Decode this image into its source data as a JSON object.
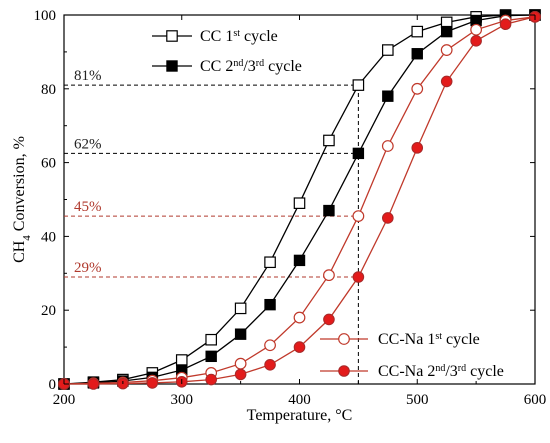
{
  "chart_data": {
    "type": "line",
    "xlabel": "Temperature, °C",
    "ylabel": {
      "pre": "CH",
      "sub": "4",
      "post": " Conversion, %"
    },
    "xlim": [
      200,
      600
    ],
    "ylim": [
      0,
      100
    ],
    "xticks": [
      200,
      300,
      400,
      500,
      600
    ],
    "yticks": [
      0,
      20,
      40,
      60,
      80,
      100
    ],
    "grid": false,
    "series": [
      {
        "id": "cc1",
        "name": {
          "pre": "CC 1",
          "sup": "st",
          "post": " cycle"
        },
        "color": "#000000",
        "marker": "square-open",
        "x": [
          200,
          225,
          250,
          275,
          300,
          325,
          350,
          375,
          400,
          425,
          450,
          475,
          500,
          525,
          550,
          575,
          600
        ],
        "y": [
          0,
          0.5,
          1.2,
          3,
          6.5,
          12,
          20.5,
          33,
          49,
          66,
          81,
          90.5,
          95.5,
          98,
          99.5,
          100,
          100
        ]
      },
      {
        "id": "cc23",
        "name": {
          "pre": "CC 2",
          "sup": "nd",
          "mid": "/3",
          "sup2": "rd",
          "post": " cycle"
        },
        "color": "#000000",
        "marker": "square-filled",
        "x": [
          200,
          225,
          250,
          275,
          300,
          325,
          350,
          375,
          400,
          425,
          450,
          475,
          500,
          525,
          550,
          575,
          600
        ],
        "y": [
          0,
          0.3,
          0.8,
          1.8,
          3.8,
          7.5,
          13.5,
          21.5,
          33.5,
          47,
          62.5,
          78,
          89.5,
          95.5,
          98.5,
          99.8,
          100
        ]
      },
      {
        "id": "na1",
        "name": {
          "pre": "CC-Na 1",
          "sup": "st",
          "post": " cycle"
        },
        "color": "#c0392b",
        "marker": "circle-open",
        "x": [
          200,
          225,
          250,
          275,
          300,
          325,
          350,
          375,
          400,
          425,
          450,
          475,
          500,
          525,
          550,
          575,
          600
        ],
        "y": [
          0,
          0.2,
          0.4,
          0.9,
          1.7,
          3,
          5.5,
          10.5,
          18,
          29.5,
          45.5,
          64.5,
          80,
          90.5,
          96,
          98.5,
          99.5
        ]
      },
      {
        "id": "na23",
        "name": {
          "pre": "CC-Na 2",
          "sup": "nd",
          "mid": "/3",
          "sup2": "rd",
          "post": " cycle"
        },
        "color": "#c0392b",
        "marker": "circle-filled",
        "x": [
          200,
          225,
          250,
          275,
          300,
          325,
          350,
          375,
          400,
          425,
          450,
          475,
          500,
          525,
          550,
          575,
          600
        ],
        "y": [
          0,
          0,
          0.1,
          0.3,
          0.6,
          1.2,
          2.6,
          5.2,
          10,
          17.5,
          29,
          45,
          64,
          82,
          93,
          97.5,
          99.5
        ]
      }
    ],
    "annotations": [
      {
        "label": "81%",
        "y": 81,
        "x_end": 450,
        "color": "#000000"
      },
      {
        "label": "62%",
        "y": 62.5,
        "x_end": 450,
        "color": "#000000"
      },
      {
        "label": "45%",
        "y": 45.5,
        "x_end": 450,
        "color": "#b03a2e"
      },
      {
        "label": "29%",
        "y": 29,
        "x_end": 450,
        "color": "#b03a2e"
      }
    ],
    "vline": {
      "x": 450,
      "y_from": 0,
      "y_to": 81,
      "color": "#000000"
    },
    "legend": {
      "placement": "top-left and bottom-right"
    }
  }
}
